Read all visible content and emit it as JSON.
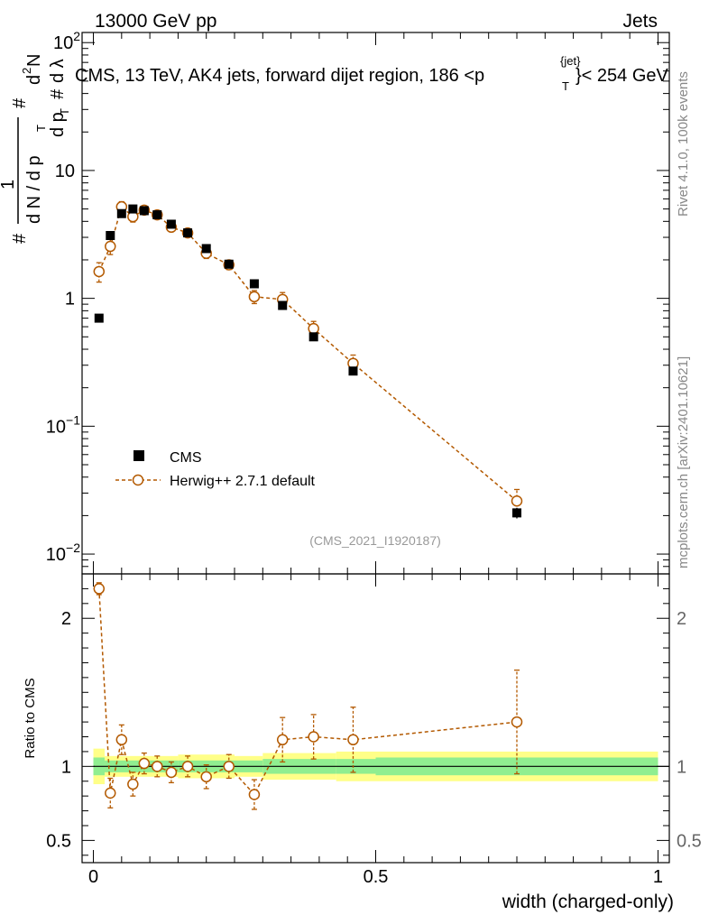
{
  "header": {
    "energy_label": "13000 GeV pp",
    "category_label": "Jets"
  },
  "side_labels": {
    "rivet": "Rivet 4.1.0,  100k events",
    "mcplots": "mcplots.cern.ch [arXiv:2401.10621]"
  },
  "colors": {
    "data": "#000000",
    "mc": "#b35900",
    "band_inner": "#90ee90",
    "band_outer": "#ffff88"
  },
  "chart_data": [
    {
      "type": "scatter",
      "panel": "main",
      "title": "CMS, 13 TeV, AK4 jets, forward dijet region, 186 <p",
      "title_sup": "{jet}",
      "title_sub": "T",
      "title_end": "}< 254 GeV",
      "analysis_id": "(CMS_2021_I1920187)",
      "yscale": "log",
      "ylim": [
        0.007,
        120
      ],
      "xlim": [
        -0.02,
        1.02
      ],
      "y_ticks": [
        {
          "value": 0.01,
          "base": "10",
          "exp": "−2"
        },
        {
          "value": 0.1,
          "base": "10",
          "exp": "−1"
        },
        {
          "value": 1,
          "base": "1",
          "exp": ""
        },
        {
          "value": 10,
          "base": "10",
          "exp": ""
        },
        {
          "value": 100,
          "base": "10",
          "exp": "2"
        }
      ],
      "ylabel": {
        "line1_parts": [
          "#",
          "1",
          "d N / d p",
          "T",
          "#",
          "d p",
          "T",
          "d",
          "2",
          "N",
          "#",
          "d λ"
        ]
      },
      "legend": {
        "position": "bottom-left",
        "entries": [
          {
            "label": "CMS",
            "marker": "square"
          },
          {
            "label": "Herwig++ 2.7.1 default",
            "marker": "open-circle-dashed"
          }
        ]
      },
      "series": [
        {
          "name": "CMS",
          "x": [
            0.01,
            0.03,
            0.05,
            0.07,
            0.09,
            0.113,
            0.138,
            0.167,
            0.2,
            0.24,
            0.285,
            0.335,
            0.39,
            0.46,
            0.75
          ],
          "y": [
            0.7,
            3.1,
            4.6,
            5.0,
            4.85,
            4.5,
            3.8,
            3.25,
            2.45,
            1.85,
            1.3,
            0.88,
            0.5,
            0.27,
            0.021
          ],
          "yerr": [
            0.03,
            0.1,
            0.15,
            0.15,
            0.15,
            0.15,
            0.12,
            0.1,
            0.08,
            0.06,
            0.05,
            0.04,
            0.03,
            0.02,
            0.002
          ]
        },
        {
          "name": "Herwig++ 2.7.1 default",
          "x": [
            0.01,
            0.03,
            0.05,
            0.07,
            0.09,
            0.113,
            0.138,
            0.167,
            0.2,
            0.24,
            0.285,
            0.335,
            0.39,
            0.46,
            0.75
          ],
          "y": [
            1.62,
            2.55,
            5.2,
            4.35,
            4.9,
            4.5,
            3.6,
            3.25,
            2.25,
            1.83,
            1.03,
            0.98,
            0.58,
            0.31,
            0.026
          ],
          "yerr": [
            0.28,
            0.35,
            0.5,
            0.4,
            0.35,
            0.3,
            0.28,
            0.22,
            0.2,
            0.15,
            0.12,
            0.13,
            0.08,
            0.05,
            0.006
          ]
        }
      ]
    },
    {
      "type": "scatter",
      "panel": "ratio",
      "ylabel": "Ratio to CMS",
      "xlabel": "width (charged-only)",
      "xlim": [
        -0.02,
        1.02
      ],
      "ylim": [
        0.35,
        2.3
      ],
      "x_ticks": [
        {
          "value": 0,
          "label": "0"
        },
        {
          "value": 0.5,
          "label": "0.5"
        },
        {
          "value": 1,
          "label": "1"
        }
      ],
      "y_ticks": [
        {
          "value": 0.5,
          "label": "0.5"
        },
        {
          "value": 1,
          "label": "1"
        },
        {
          "value": 2,
          "label": "2"
        }
      ],
      "bands": [
        {
          "x0": 0.0,
          "x1": 0.02,
          "inner": [
            0.94,
            1.06
          ],
          "outer": [
            0.88,
            1.12
          ]
        },
        {
          "x0": 0.02,
          "x1": 0.15,
          "inner": [
            0.96,
            1.04
          ],
          "outer": [
            0.93,
            1.07
          ]
        },
        {
          "x0": 0.15,
          "x1": 0.25,
          "inner": [
            0.96,
            1.04
          ],
          "outer": [
            0.92,
            1.08
          ]
        },
        {
          "x0": 0.25,
          "x1": 0.3,
          "inner": [
            0.96,
            1.04
          ],
          "outer": [
            0.93,
            1.07
          ]
        },
        {
          "x0": 0.3,
          "x1": 0.43,
          "inner": [
            0.95,
            1.05
          ],
          "outer": [
            0.91,
            1.09
          ]
        },
        {
          "x0": 0.43,
          "x1": 0.5,
          "inner": [
            0.95,
            1.05
          ],
          "outer": [
            0.9,
            1.1
          ]
        },
        {
          "x0": 0.5,
          "x1": 1.0,
          "inner": [
            0.94,
            1.06
          ],
          "outer": [
            0.9,
            1.1
          ]
        }
      ],
      "series": [
        {
          "name": "Herwig++ 2.7.1 default",
          "x": [
            0.01,
            0.03,
            0.05,
            0.07,
            0.09,
            0.113,
            0.138,
            0.167,
            0.2,
            0.24,
            0.285,
            0.335,
            0.39,
            0.46,
            0.75
          ],
          "y": [
            2.2,
            0.82,
            1.18,
            0.88,
            1.02,
            1.0,
            0.96,
            1.0,
            0.93,
            1.0,
            0.81,
            1.18,
            1.2,
            1.18,
            1.3
          ],
          "yerr": [
            0.04,
            0.1,
            0.1,
            0.08,
            0.07,
            0.07,
            0.07,
            0.07,
            0.08,
            0.08,
            0.1,
            0.15,
            0.15,
            0.22,
            0.35
          ]
        }
      ]
    }
  ]
}
